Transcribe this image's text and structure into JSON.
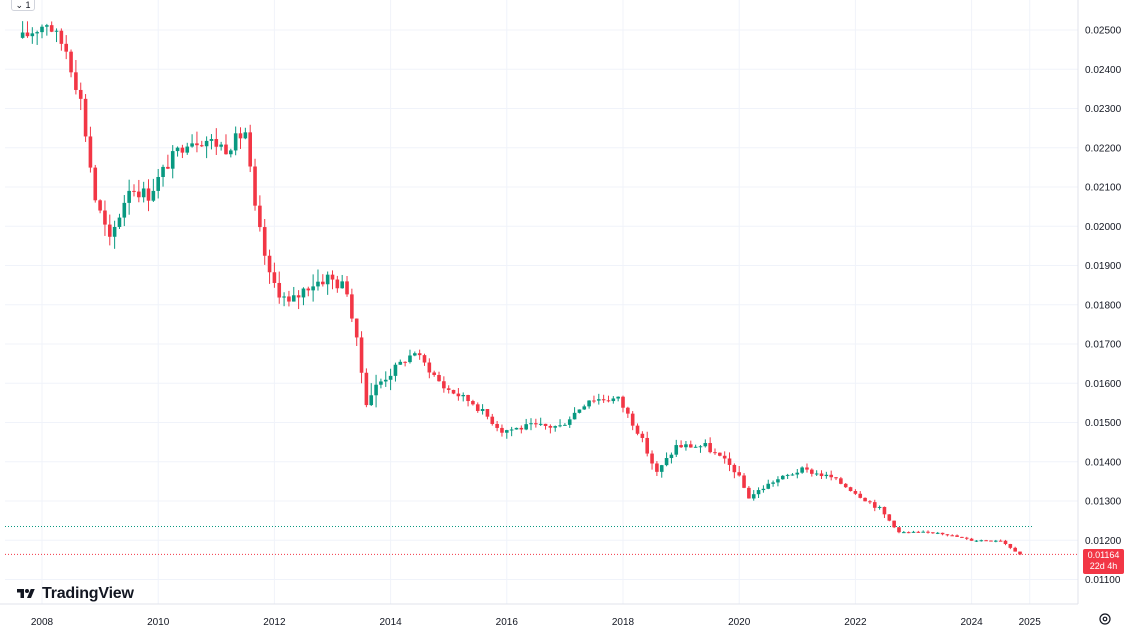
{
  "toolbar": {
    "interval_label": "⌄ 1"
  },
  "logo": {
    "text": "TradingView"
  },
  "price_badge": {
    "price": "0.01164",
    "countdown": "22d 4h"
  },
  "colors": {
    "up": "#089981",
    "down": "#f23645",
    "grid": "#f0f3fa",
    "prev_close_line": "#089981"
  },
  "icons": {
    "settings": "gear-icon",
    "logo": "tradingview-logo-icon"
  },
  "chart_data": {
    "type": "candlestick",
    "title": "",
    "interval": "1M",
    "xlabel": "",
    "ylabel": "",
    "x_ticks": [
      "2008",
      "2010",
      "2012",
      "2014",
      "2016",
      "2018",
      "2020",
      "2022",
      "2024",
      "2025"
    ],
    "y_ticks": [
      "0.02500",
      "0.02400",
      "0.02300",
      "0.02200",
      "0.02100",
      "0.02000",
      "0.01900",
      "0.01800",
      "0.01700",
      "0.01600",
      "0.01500",
      "0.01400",
      "0.01300",
      "0.01200",
      "0.01100"
    ],
    "ylim": [
      0.0106,
      0.0256
    ],
    "grid": true,
    "last_price": 0.01164,
    "prev_close_line": 0.01235,
    "close_path": [
      [
        "2007-09",
        0.0248
      ],
      [
        "2008-02",
        0.0252
      ],
      [
        "2008-06",
        0.0245
      ],
      [
        "2008-09",
        0.0232
      ],
      [
        "2008-12",
        0.0207
      ],
      [
        "2009-03",
        0.0196
      ],
      [
        "2009-07",
        0.021
      ],
      [
        "2009-11",
        0.0208
      ],
      [
        "2010-03",
        0.0216
      ],
      [
        "2010-07",
        0.0222
      ],
      [
        "2010-11",
        0.0222
      ],
      [
        "2011-03",
        0.022
      ],
      [
        "2011-07",
        0.0224
      ],
      [
        "2011-09",
        0.0204
      ],
      [
        "2011-12",
        0.0187
      ],
      [
        "2012-04",
        0.018
      ],
      [
        "2012-08",
        0.0185
      ],
      [
        "2012-12",
        0.0187
      ],
      [
        "2013-04",
        0.0184
      ],
      [
        "2013-06",
        0.017
      ],
      [
        "2013-08",
        0.0156
      ],
      [
        "2013-12",
        0.0162
      ],
      [
        "2014-06",
        0.0168
      ],
      [
        "2014-12",
        0.0159
      ],
      [
        "2015-06",
        0.0155
      ],
      [
        "2015-12",
        0.0148
      ],
      [
        "2016-06",
        0.0149
      ],
      [
        "2016-12",
        0.0149
      ],
      [
        "2017-06",
        0.0156
      ],
      [
        "2017-12",
        0.0156
      ],
      [
        "2018-04",
        0.0148
      ],
      [
        "2018-08",
        0.0137
      ],
      [
        "2018-12",
        0.0144
      ],
      [
        "2019-06",
        0.0144
      ],
      [
        "2019-12",
        0.0138
      ],
      [
        "2020-03",
        0.0131
      ],
      [
        "2020-08",
        0.0135
      ],
      [
        "2021-02",
        0.0138
      ],
      [
        "2021-08",
        0.0136
      ],
      [
        "2021-12",
        0.0133
      ],
      [
        "2022-06",
        0.0128
      ],
      [
        "2022-10",
        0.0122
      ],
      [
        "2023-06",
        0.0122
      ],
      [
        "2024-01",
        0.012
      ],
      [
        "2024-07",
        0.012
      ],
      [
        "2024-11",
        0.01164
      ]
    ]
  }
}
